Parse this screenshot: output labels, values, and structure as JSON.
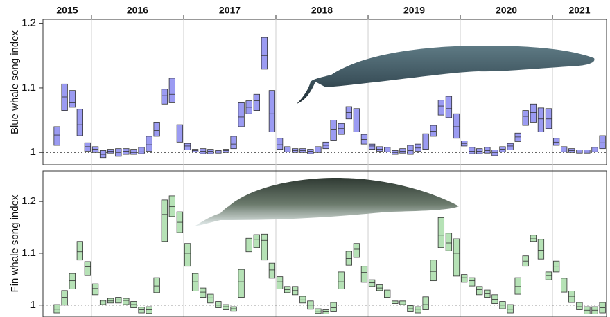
{
  "chart_data": [
    {
      "type": "range",
      "ylabel": "Blue whale song index",
      "color": "#9b9bf2",
      "years": [
        2015,
        2016,
        2017,
        2018,
        2019,
        2020,
        2021
      ],
      "xlim": [
        2015.474,
        2021.586
      ],
      "ylim": [
        0.981,
        1.206
      ],
      "yticks": [
        1,
        1.1,
        1.2
      ],
      "hline": 1,
      "x": [
        2015.625,
        2015.708,
        2015.792,
        2015.875,
        2015.958,
        2016.042,
        2016.125,
        2016.208,
        2016.292,
        2016.375,
        2016.458,
        2016.542,
        2016.625,
        2016.708,
        2016.792,
        2016.875,
        2016.958,
        2017.042,
        2017.125,
        2017.208,
        2017.292,
        2017.375,
        2017.458,
        2017.542,
        2017.625,
        2017.708,
        2017.792,
        2017.875,
        2017.958,
        2018.042,
        2018.125,
        2018.208,
        2018.292,
        2018.375,
        2018.458,
        2018.542,
        2018.625,
        2018.708,
        2018.792,
        2018.875,
        2018.958,
        2019.042,
        2019.125,
        2019.208,
        2019.292,
        2019.375,
        2019.458,
        2019.542,
        2019.625,
        2019.708,
        2019.792,
        2019.875,
        2019.958,
        2020.042,
        2020.125,
        2020.208,
        2020.292,
        2020.375,
        2020.458,
        2020.542,
        2020.625,
        2020.708,
        2020.792,
        2020.875,
        2020.958,
        2021.042,
        2021.125,
        2021.208,
        2021.292,
        2021.375,
        2021.458,
        2021.542
      ],
      "high": [
        1.04,
        1.106,
        1.096,
        1.067,
        1.015,
        1.009,
        1.003,
        1.005,
        1.006,
        1.006,
        1.005,
        1.008,
        1.025,
        1.047,
        1.098,
        1.115,
        1.043,
        1.014,
        1.005,
        1.006,
        1.005,
        1.003,
        1.005,
        1.025,
        1.077,
        1.08,
        1.09,
        1.178,
        1.096,
        1.022,
        1.009,
        1.006,
        1.006,
        1.005,
        1.009,
        1.016,
        1.05,
        1.045,
        1.071,
        1.068,
        1.028,
        1.013,
        1.009,
        1.008,
        1.003,
        1.006,
        1.011,
        1.013,
        1.029,
        1.042,
        1.081,
        1.087,
        1.06,
        1.018,
        1.008,
        1.006,
        1.008,
        1.004,
        1.009,
        1.014,
        1.03,
        1.065,
        1.075,
        1.069,
        1.068,
        1.022,
        1.009,
        1.006,
        1.004,
        1.004,
        1.008,
        1.026
      ],
      "median": [
        1.027,
        1.086,
        1.077,
        1.043,
        1.009,
        1.005,
        0.997,
        1.002,
        1.0,
        1.002,
        1.0,
        1.001,
        1.012,
        1.034,
        1.088,
        1.09,
        1.032,
        1.01,
        1.003,
        1.002,
        1.002,
        1.001,
        1.003,
        1.013,
        1.055,
        1.07,
        1.08,
        1.15,
        1.06,
        1.012,
        1.004,
        1.003,
        1.003,
        1.002,
        1.004,
        1.011,
        1.035,
        1.037,
        1.062,
        1.05,
        1.02,
        1.01,
        1.005,
        1.004,
        1.0,
        1.002,
        1.003,
        1.007,
        1.018,
        1.033,
        1.072,
        1.068,
        1.04,
        1.014,
        1.002,
        1.002,
        1.003,
        1.0,
        1.005,
        1.01,
        1.024,
        1.056,
        1.062,
        1.052,
        1.052,
        1.016,
        1.004,
        1.003,
        1.001,
        1.001,
        1.004,
        1.015
      ],
      "low": [
        1.011,
        1.065,
        1.07,
        1.026,
        1.002,
        1.0,
        0.992,
        0.999,
        0.994,
        0.997,
        0.997,
        0.998,
        1.002,
        1.025,
        1.075,
        1.077,
        1.016,
        1.004,
        1.001,
        0.998,
        0.998,
        0.999,
        1.0,
        1.006,
        1.04,
        1.06,
        1.065,
        1.129,
        1.032,
        1.005,
        1.001,
        1.0,
        1.0,
        0.998,
        1.0,
        1.006,
        1.019,
        1.028,
        1.052,
        1.032,
        1.013,
        1.005,
        1.002,
        1.001,
        0.997,
        0.999,
        0.997,
        1.002,
        1.005,
        1.025,
        1.058,
        1.054,
        1.022,
        1.01,
        0.998,
        0.998,
        0.999,
        0.995,
        1.001,
        1.004,
        1.017,
        1.042,
        1.047,
        1.032,
        1.037,
        1.011,
        1.001,
        1.0,
        0.999,
        0.999,
        1.001,
        1.006
      ]
    },
    {
      "type": "range",
      "ylabel": "Fin whale song index",
      "color": "#b6e2b6",
      "xlim": [
        2015.474,
        2021.586
      ],
      "ylim": [
        0.977,
        1.259
      ],
      "yticks": [
        1,
        1.1,
        1.2
      ],
      "hline": 1,
      "x": [
        2015.625,
        2015.708,
        2015.792,
        2015.875,
        2015.958,
        2016.042,
        2016.125,
        2016.208,
        2016.292,
        2016.375,
        2016.458,
        2016.542,
        2016.625,
        2016.708,
        2016.792,
        2016.875,
        2016.958,
        2017.042,
        2017.125,
        2017.208,
        2017.292,
        2017.375,
        2017.458,
        2017.542,
        2017.625,
        2017.708,
        2017.792,
        2017.875,
        2017.958,
        2018.042,
        2018.125,
        2018.208,
        2018.292,
        2018.375,
        2018.458,
        2018.542,
        2018.625,
        2018.708,
        2018.792,
        2018.875,
        2018.958,
        2019.042,
        2019.125,
        2019.208,
        2019.292,
        2019.375,
        2019.458,
        2019.542,
        2019.625,
        2019.708,
        2019.792,
        2019.875,
        2019.958,
        2020.042,
        2020.125,
        2020.208,
        2020.292,
        2020.375,
        2020.458,
        2020.542,
        2020.625,
        2020.708,
        2020.792,
        2020.875,
        2020.958,
        2021.042,
        2021.125,
        2021.208,
        2021.292,
        2021.375,
        2021.458,
        2021.542
      ],
      "high": [
        1.001,
        1.028,
        1.061,
        1.123,
        1.084,
        1.041,
        1.009,
        1.013,
        1.015,
        1.013,
        1.007,
        0.996,
        0.997,
        1.053,
        1.203,
        1.211,
        1.18,
        1.119,
        1.061,
        1.033,
        1.021,
        1.007,
        1.001,
        0.997,
        1.069,
        1.129,
        1.136,
        1.137,
        1.081,
        1.055,
        1.036,
        1.036,
        1.017,
        1.008,
        0.993,
        0.991,
        1.005,
        1.064,
        1.104,
        1.119,
        1.075,
        1.049,
        1.039,
        1.029,
        1.008,
        1.008,
        0.999,
        0.997,
        1.016,
        1.087,
        1.169,
        1.139,
        1.128,
        1.059,
        1.053,
        1.036,
        1.029,
        1.02,
        1.007,
        1.001,
        1.053,
        1.095,
        1.135,
        1.127,
        1.064,
        1.085,
        1.052,
        1.027,
        1.005,
        0.997,
        0.997,
        1.005
      ],
      "median": [
        0.992,
        1.015,
        1.047,
        1.103,
        1.074,
        1.032,
        1.006,
        1.008,
        1.01,
        1.009,
        1.001,
        0.991,
        0.991,
        1.037,
        1.175,
        1.19,
        1.16,
        1.1,
        1.045,
        1.025,
        1.014,
        1.0,
        0.997,
        0.993,
        1.045,
        1.118,
        1.127,
        1.125,
        1.068,
        1.045,
        1.03,
        1.028,
        1.01,
        1.0,
        0.988,
        0.987,
        0.995,
        1.045,
        1.09,
        1.108,
        1.063,
        1.043,
        1.033,
        1.023,
        1.006,
        1.006,
        0.993,
        0.992,
        1.001,
        1.065,
        1.135,
        1.12,
        1.1,
        1.053,
        1.047,
        1.03,
        1.022,
        1.011,
        1.0,
        0.992,
        1.036,
        1.085,
        1.128,
        1.106,
        1.057,
        1.075,
        1.035,
        1.017,
        0.997,
        0.99,
        0.99,
        0.995
      ],
      "low": [
        0.985,
        1.0,
        1.031,
        1.087,
        1.057,
        1.02,
        1.001,
        1.004,
        1.004,
        1.001,
        0.995,
        0.985,
        0.984,
        1.024,
        1.123,
        1.171,
        1.14,
        1.075,
        1.027,
        1.015,
        1.004,
        0.995,
        0.991,
        0.988,
        1.015,
        1.103,
        1.111,
        1.087,
        1.052,
        1.031,
        1.024,
        1.02,
        1.004,
        0.992,
        0.984,
        0.983,
        0.987,
        1.031,
        1.077,
        1.092,
        1.044,
        1.036,
        1.028,
        1.015,
        1.003,
        1.001,
        0.987,
        0.985,
        0.991,
        1.047,
        1.111,
        1.105,
        1.056,
        1.044,
        1.037,
        1.02,
        1.015,
        1.003,
        0.993,
        0.985,
        1.021,
        1.075,
        1.123,
        1.089,
        1.049,
        1.064,
        1.025,
        1.005,
        0.991,
        0.983,
        0.983,
        0.985
      ]
    }
  ]
}
